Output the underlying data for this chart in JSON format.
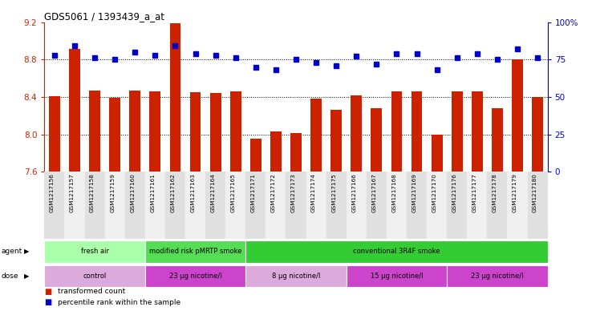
{
  "title": "GDS5061 / 1393439_a_at",
  "samples": [
    "GSM1217156",
    "GSM1217157",
    "GSM1217158",
    "GSM1217159",
    "GSM1217160",
    "GSM1217161",
    "GSM1217162",
    "GSM1217163",
    "GSM1217164",
    "GSM1217165",
    "GSM1217171",
    "GSM1217172",
    "GSM1217173",
    "GSM1217174",
    "GSM1217175",
    "GSM1217166",
    "GSM1217167",
    "GSM1217168",
    "GSM1217169",
    "GSM1217170",
    "GSM1217176",
    "GSM1217177",
    "GSM1217178",
    "GSM1217179",
    "GSM1217180"
  ],
  "bar_values": [
    8.41,
    8.91,
    8.47,
    8.39,
    8.47,
    8.46,
    9.19,
    8.45,
    8.44,
    8.46,
    7.95,
    8.03,
    8.01,
    8.38,
    8.26,
    8.42,
    8.28,
    8.46,
    8.46,
    8.0,
    8.46,
    8.46,
    8.28,
    8.8,
    8.4
  ],
  "percentile_values": [
    78,
    84,
    76,
    75,
    80,
    78,
    84,
    79,
    78,
    76,
    70,
    68,
    75,
    73,
    71,
    77,
    72,
    79,
    79,
    68,
    76,
    79,
    75,
    82,
    76
  ],
  "bar_color": "#CC2200",
  "dot_color": "#0000CC",
  "ylim": [
    7.6,
    9.2
  ],
  "y_ticks": [
    7.6,
    8.0,
    8.4,
    8.8,
    9.2
  ],
  "right_yticks": [
    0,
    25,
    50,
    75,
    100
  ],
  "right_ytick_labels": [
    "0",
    "25",
    "50",
    "75",
    "100%"
  ],
  "agent_groups": [
    {
      "label": "fresh air",
      "start": 0,
      "end": 5,
      "color": "#AAFFAA"
    },
    {
      "label": "modified risk pMRTP smoke",
      "start": 5,
      "end": 10,
      "color": "#55DD55"
    },
    {
      "label": "conventional 3R4F smoke",
      "start": 10,
      "end": 25,
      "color": "#33CC33"
    }
  ],
  "dose_groups": [
    {
      "label": "control",
      "start": 0,
      "end": 5,
      "color": "#DDAADD"
    },
    {
      "label": "23 μg nicotine/l",
      "start": 5,
      "end": 10,
      "color": "#CC44CC"
    },
    {
      "label": "8 μg nicotine/l",
      "start": 10,
      "end": 15,
      "color": "#DDAADD"
    },
    {
      "label": "15 μg nicotine/l",
      "start": 15,
      "end": 20,
      "color": "#CC44CC"
    },
    {
      "label": "23 μg nicotine/l",
      "start": 20,
      "end": 25,
      "color": "#CC44CC"
    }
  ],
  "legend_items": [
    {
      "label": "transformed count",
      "color": "#CC2200"
    },
    {
      "label": "percentile rank within the sample",
      "color": "#0000CC"
    }
  ]
}
